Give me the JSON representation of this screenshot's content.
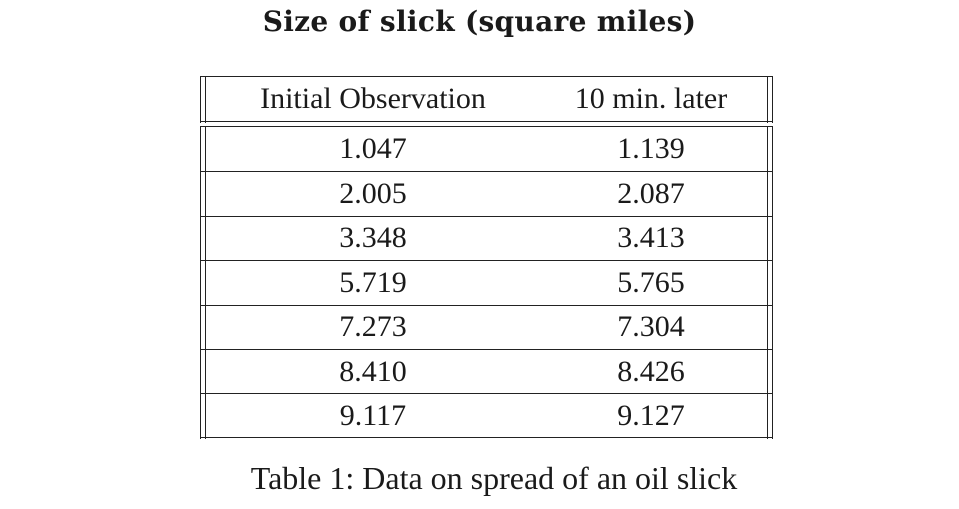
{
  "title": "Size of slick (square miles)",
  "table": {
    "headers": [
      "Initial Observation",
      "10 min. later"
    ],
    "rows": [
      [
        "1.047",
        "1.139"
      ],
      [
        "2.005",
        "2.087"
      ],
      [
        "3.348",
        "3.413"
      ],
      [
        "5.719",
        "5.765"
      ],
      [
        "7.273",
        "7.304"
      ],
      [
        "8.410",
        "8.426"
      ],
      [
        "9.117",
        "9.127"
      ]
    ]
  },
  "caption": "Table 1: Data on spread of an oil slick"
}
